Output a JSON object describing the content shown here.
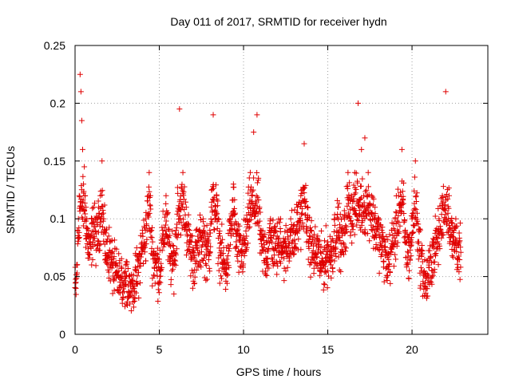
{
  "chart_data": {
    "type": "scatter",
    "title": "Day 011 of 2017, SRMTID for receiver hydn",
    "xlabel": "GPS time / hours",
    "ylabel": "SRMTID / TECUs",
    "xlim": [
      0,
      24.5
    ],
    "ylim": [
      0,
      0.25
    ],
    "x_ticks": [
      0,
      5,
      10,
      15,
      20
    ],
    "x_tick_labels": [
      "0",
      "5",
      "10",
      "15",
      "20"
    ],
    "y_ticks": [
      0,
      0.05,
      0.1,
      0.15,
      0.2,
      0.25
    ],
    "y_tick_labels": [
      "0",
      "0.05",
      "0.1",
      "0.15",
      "0.2",
      "0.25"
    ],
    "grid": true,
    "marker": "+",
    "series": [
      {
        "name": "SRMTID",
        "color": "#e00000",
        "points_description": "dense scatter of ~2000 points sampled every ~30 s between 0 and 23 h; values mostly 0.03-0.13 TECU",
        "x": [
          0.05,
          0.1,
          0.15,
          0.2,
          0.25,
          0.3,
          0.35,
          0.4,
          0.45,
          0.5,
          0.55,
          0.6,
          0.65,
          0.7,
          0.8,
          0.9,
          1.0,
          1.1,
          1.2,
          1.3,
          1.4,
          1.5,
          1.6,
          1.7,
          1.8,
          1.9,
          2.0,
          2.2,
          2.4,
          2.6,
          2.8,
          3.0,
          3.2,
          3.4,
          3.6,
          3.8,
          4.0,
          4.2,
          4.4,
          4.6,
          4.8,
          5.0,
          5.2,
          5.4,
          5.6,
          5.8,
          6.0,
          6.2,
          6.4,
          6.6,
          6.8,
          7.0,
          7.2,
          7.4,
          7.6,
          7.8,
          8.0,
          8.2,
          8.4,
          8.6,
          8.8,
          9.0,
          9.2,
          9.4,
          9.6,
          9.8,
          10.0,
          10.2,
          10.4,
          10.6,
          10.8,
          11.0,
          11.2,
          11.4,
          11.6,
          11.8,
          12.0,
          12.2,
          12.4,
          12.6,
          12.8,
          13.0,
          13.2,
          13.4,
          13.6,
          13.8,
          14.0,
          14.2,
          14.4,
          14.6,
          14.8,
          15.0,
          15.2,
          15.4,
          15.6,
          15.8,
          16.0,
          16.2,
          16.4,
          16.6,
          16.8,
          17.0,
          17.2,
          17.4,
          17.6,
          17.8,
          18.0,
          18.2,
          18.4,
          18.6,
          18.8,
          19.0,
          19.2,
          19.4,
          19.6,
          19.8,
          20.0,
          20.2,
          20.4,
          20.6,
          20.8,
          21.0,
          21.2,
          21.4,
          21.6,
          21.8,
          22.0,
          22.2,
          22.4,
          22.6,
          22.8
        ],
        "y": [
          0.045,
          0.06,
          0.09,
          0.1,
          0.12,
          0.225,
          0.21,
          0.185,
          0.16,
          0.13,
          0.145,
          0.12,
          0.11,
          0.1,
          0.09,
          0.08,
          0.1,
          0.11,
          0.1,
          0.095,
          0.11,
          0.12,
          0.15,
          0.1,
          0.09,
          0.08,
          0.085,
          0.07,
          0.06,
          0.055,
          0.05,
          0.06,
          0.05,
          0.045,
          0.055,
          0.07,
          0.09,
          0.1,
          0.14,
          0.08,
          0.07,
          0.065,
          0.09,
          0.12,
          0.08,
          0.07,
          0.09,
          0.195,
          0.14,
          0.11,
          0.09,
          0.075,
          0.08,
          0.09,
          0.1,
          0.08,
          0.09,
          0.19,
          0.12,
          0.085,
          0.07,
          0.065,
          0.1,
          0.13,
          0.09,
          0.08,
          0.085,
          0.1,
          0.14,
          0.175,
          0.19,
          0.09,
          0.085,
          0.08,
          0.1,
          0.09,
          0.085,
          0.1,
          0.08,
          0.09,
          0.1,
          0.095,
          0.11,
          0.12,
          0.165,
          0.1,
          0.09,
          0.08,
          0.085,
          0.07,
          0.075,
          0.08,
          0.08,
          0.1,
          0.11,
          0.09,
          0.1,
          0.14,
          0.12,
          0.14,
          0.2,
          0.16,
          0.17,
          0.14,
          0.12,
          0.11,
          0.1,
          0.09,
          0.08,
          0.07,
          0.09,
          0.1,
          0.12,
          0.16,
          0.09,
          0.08,
          0.1,
          0.15,
          0.09,
          0.07,
          0.05,
          0.06,
          0.08,
          0.09,
          0.1,
          0.12,
          0.21,
          0.12,
          0.09,
          0.1,
          0.08
        ]
      }
    ]
  }
}
